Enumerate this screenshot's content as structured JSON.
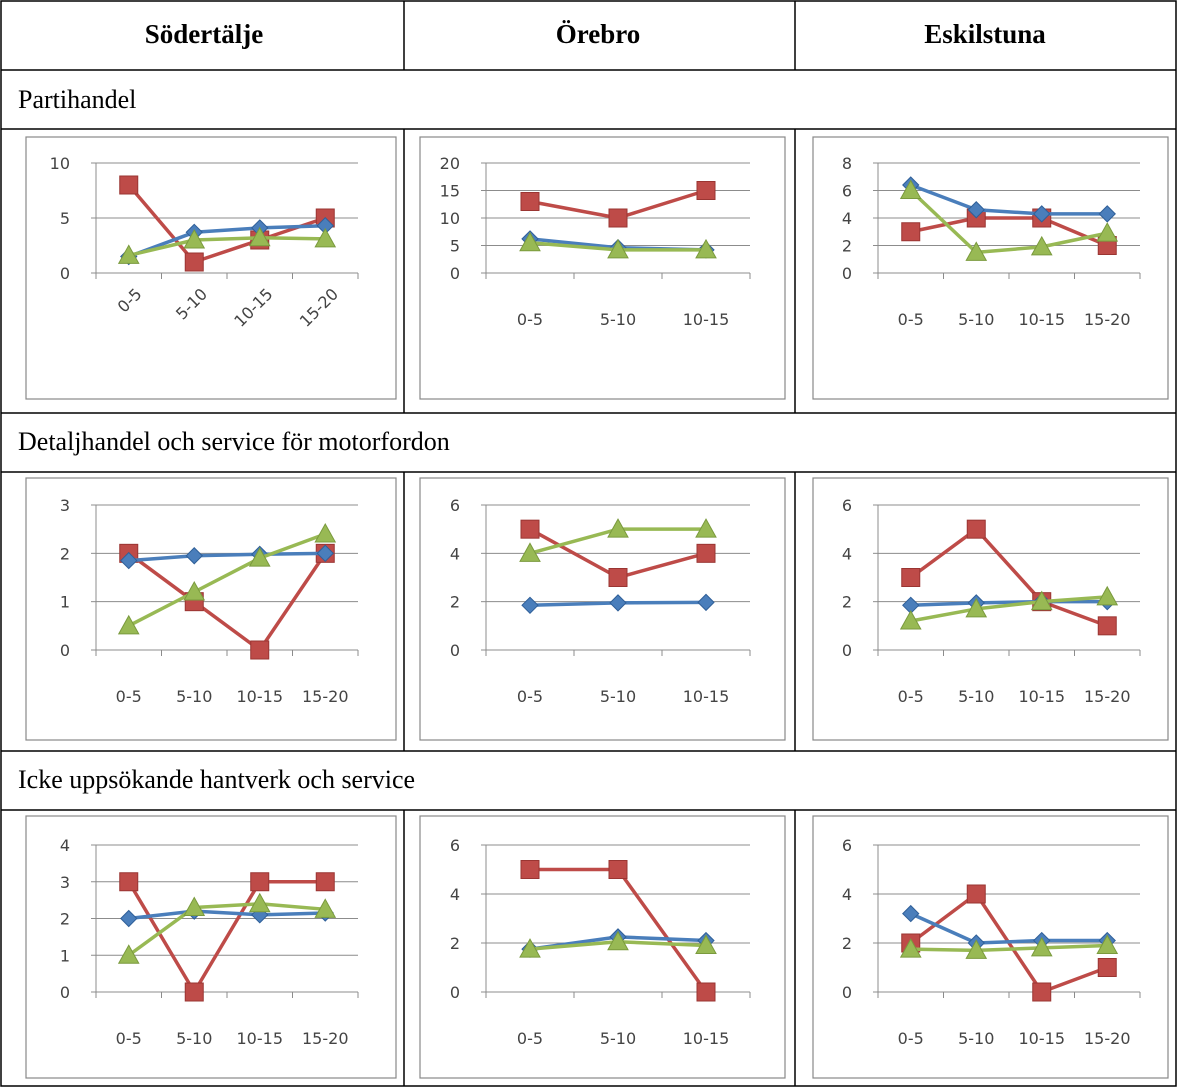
{
  "columns": [
    "Södertälje",
    "Örebro",
    "Eskilstuna"
  ],
  "sections": [
    "Partihandel",
    "Detaljhandel och service för motorfordon",
    "Icke uppsökande hantverk och service"
  ],
  "series_colors": {
    "blue": "#4a7ebb",
    "red": "#be4b48",
    "green": "#98b954"
  },
  "chart_data": [
    {
      "type": "line",
      "row": 0,
      "col": 0,
      "categories": [
        "0-5",
        "5-10",
        "10-15",
        "15-20"
      ],
      "rotated_labels": true,
      "ylim": [
        0,
        10
      ],
      "yticks": [
        0,
        5,
        10
      ],
      "series": [
        {
          "color": "red",
          "marker": "square",
          "values": [
            8,
            1,
            3,
            5
          ]
        },
        {
          "color": "blue",
          "marker": "diamond",
          "values": [
            1.5,
            3.7,
            4.1,
            4.3
          ]
        },
        {
          "color": "green",
          "marker": "triangle",
          "values": [
            1.6,
            3.0,
            3.2,
            3.1
          ]
        }
      ]
    },
    {
      "type": "line",
      "row": 0,
      "col": 1,
      "categories": [
        "0-5",
        "5-10",
        "10-15"
      ],
      "rotated_labels": false,
      "ylim": [
        0,
        20
      ],
      "yticks": [
        0,
        5,
        10,
        15,
        20
      ],
      "series": [
        {
          "color": "red",
          "marker": "square",
          "values": [
            13,
            10,
            15
          ]
        },
        {
          "color": "blue",
          "marker": "diamond",
          "values": [
            6.2,
            4.6,
            4.2
          ]
        },
        {
          "color": "green",
          "marker": "triangle",
          "values": [
            5.5,
            4.2,
            4.2
          ]
        }
      ]
    },
    {
      "type": "line",
      "row": 0,
      "col": 2,
      "categories": [
        "0-5",
        "5-10",
        "10-15",
        "15-20"
      ],
      "rotated_labels": false,
      "ylim": [
        0,
        8
      ],
      "yticks": [
        0,
        2,
        4,
        6,
        8
      ],
      "series": [
        {
          "color": "red",
          "marker": "square",
          "values": [
            3,
            4,
            4,
            2
          ]
        },
        {
          "color": "blue",
          "marker": "diamond",
          "values": [
            6.4,
            4.6,
            4.3,
            4.3
          ]
        },
        {
          "color": "green",
          "marker": "triangle",
          "values": [
            6.0,
            1.5,
            1.9,
            2.9
          ]
        }
      ]
    },
    {
      "type": "line",
      "row": 1,
      "col": 0,
      "categories": [
        "0-5",
        "5-10",
        "10-15",
        "15-20"
      ],
      "rotated_labels": false,
      "ylim": [
        0,
        3
      ],
      "yticks": [
        0,
        1,
        2,
        3
      ],
      "series": [
        {
          "color": "red",
          "marker": "square",
          "values": [
            2,
            1,
            0,
            2
          ]
        },
        {
          "color": "blue",
          "marker": "diamond",
          "values": [
            1.85,
            1.95,
            1.98,
            2.0
          ]
        },
        {
          "color": "green",
          "marker": "triangle",
          "values": [
            0.5,
            1.2,
            1.9,
            2.4
          ]
        }
      ]
    },
    {
      "type": "line",
      "row": 1,
      "col": 1,
      "categories": [
        "0-5",
        "5-10",
        "10-15"
      ],
      "rotated_labels": false,
      "ylim": [
        0,
        6
      ],
      "yticks": [
        0,
        2,
        4,
        6
      ],
      "series": [
        {
          "color": "red",
          "marker": "square",
          "values": [
            5,
            3,
            4
          ]
        },
        {
          "color": "blue",
          "marker": "diamond",
          "values": [
            1.85,
            1.95,
            1.97
          ]
        },
        {
          "color": "green",
          "marker": "triangle",
          "values": [
            4.0,
            5.0,
            5.0
          ]
        }
      ]
    },
    {
      "type": "line",
      "row": 1,
      "col": 2,
      "categories": [
        "0-5",
        "5-10",
        "10-15",
        "15-20"
      ],
      "rotated_labels": false,
      "ylim": [
        0,
        6
      ],
      "yticks": [
        0,
        2,
        4,
        6
      ],
      "series": [
        {
          "color": "red",
          "marker": "square",
          "values": [
            3,
            5,
            2,
            1
          ]
        },
        {
          "color": "blue",
          "marker": "diamond",
          "values": [
            1.85,
            1.95,
            2.0,
            2.0
          ]
        },
        {
          "color": "green",
          "marker": "triangle",
          "values": [
            1.2,
            1.7,
            2.0,
            2.2
          ]
        }
      ]
    },
    {
      "type": "line",
      "row": 2,
      "col": 0,
      "categories": [
        "0-5",
        "5-10",
        "10-15",
        "15-20"
      ],
      "rotated_labels": false,
      "ylim": [
        0,
        4
      ],
      "yticks": [
        0,
        1,
        2,
        3,
        4
      ],
      "series": [
        {
          "color": "red",
          "marker": "square",
          "values": [
            3,
            0,
            3,
            3
          ]
        },
        {
          "color": "blue",
          "marker": "diamond",
          "values": [
            2.0,
            2.2,
            2.1,
            2.15
          ]
        },
        {
          "color": "green",
          "marker": "triangle",
          "values": [
            1.0,
            2.3,
            2.4,
            2.25
          ]
        }
      ]
    },
    {
      "type": "line",
      "row": 2,
      "col": 1,
      "categories": [
        "0-5",
        "5-10",
        "10-15"
      ],
      "rotated_labels": false,
      "ylim": [
        0,
        6
      ],
      "yticks": [
        0,
        2,
        4,
        6
      ],
      "series": [
        {
          "color": "red",
          "marker": "square",
          "values": [
            5,
            5,
            0
          ]
        },
        {
          "color": "blue",
          "marker": "diamond",
          "values": [
            1.75,
            2.25,
            2.1
          ]
        },
        {
          "color": "green",
          "marker": "triangle",
          "values": [
            1.75,
            2.05,
            1.9
          ]
        }
      ]
    },
    {
      "type": "line",
      "row": 2,
      "col": 2,
      "categories": [
        "0-5",
        "5-10",
        "10-15",
        "15-20"
      ],
      "rotated_labels": false,
      "ylim": [
        0,
        6
      ],
      "yticks": [
        0,
        2,
        4,
        6
      ],
      "series": [
        {
          "color": "red",
          "marker": "square",
          "values": [
            2,
            4,
            0,
            1
          ]
        },
        {
          "color": "blue",
          "marker": "diamond",
          "values": [
            3.2,
            2.0,
            2.1,
            2.1
          ]
        },
        {
          "color": "green",
          "marker": "triangle",
          "values": [
            1.75,
            1.7,
            1.8,
            1.9
          ]
        }
      ]
    }
  ]
}
